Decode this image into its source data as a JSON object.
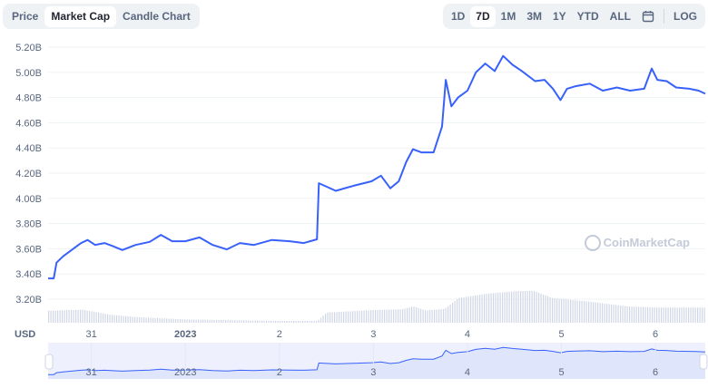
{
  "tabs": [
    {
      "label": "Price"
    },
    {
      "label": "Market Cap",
      "active": true
    },
    {
      "label": "Candle Chart"
    }
  ],
  "ranges": [
    {
      "label": "1D"
    },
    {
      "label": "7D",
      "active": true
    },
    {
      "label": "1M"
    },
    {
      "label": "3M"
    },
    {
      "label": "1Y"
    },
    {
      "label": "YTD"
    },
    {
      "label": "ALL"
    }
  ],
  "calendar_icon": "calendar-icon",
  "log_label": "LOG",
  "currency_label": "USD",
  "watermark": "CoinMarketCap",
  "colors": {
    "line": "#3861fb",
    "volume": "#cfd6e4",
    "grid": "#eff2f5",
    "navigator_fill": "#dfe6fb"
  },
  "chart_data": {
    "type": "line",
    "title": "Market Cap",
    "xlabel": "",
    "ylabel": "USD",
    "ylim": [
      3.2,
      5.2
    ],
    "y_ticks": [
      "5.20B",
      "5.00B",
      "4.80B",
      "4.60B",
      "4.40B",
      "4.20B",
      "4.00B",
      "3.80B",
      "3.60B",
      "3.40B",
      "3.20B"
    ],
    "y_tick_values": [
      5.2,
      5.0,
      4.8,
      4.6,
      4.4,
      4.2,
      4.0,
      3.8,
      3.6,
      3.4,
      3.2
    ],
    "x_unit": "days since Dec 31",
    "xlim": [
      -0.46,
      6.53
    ],
    "x_ticks": [
      "31",
      "2023",
      "2",
      "3",
      "4",
      "5",
      "6"
    ],
    "x_tick_values": [
      0,
      1,
      2,
      3,
      4,
      5,
      6
    ],
    "grid": true,
    "series": [
      {
        "name": "Market Cap (B USD)",
        "x": [
          -0.46,
          -0.4,
          -0.37,
          -0.3,
          -0.2,
          -0.11,
          -0.04,
          0.04,
          0.14,
          0.23,
          0.33,
          0.47,
          0.62,
          0.74,
          0.86,
          1.0,
          1.15,
          1.29,
          1.44,
          1.58,
          1.73,
          1.92,
          2.11,
          2.26,
          2.4,
          2.42,
          2.48,
          2.6,
          2.79,
          2.98,
          3.08,
          3.18,
          3.27,
          3.35,
          3.42,
          3.51,
          3.64,
          3.73,
          3.77,
          3.83,
          3.9,
          4.0,
          4.09,
          4.19,
          4.29,
          4.38,
          4.48,
          4.58,
          4.72,
          4.82,
          4.91,
          4.99,
          5.06,
          5.15,
          5.3,
          5.44,
          5.59,
          5.73,
          5.88,
          5.96,
          6.02,
          6.12,
          6.22,
          6.36,
          6.46,
          6.53
        ],
        "values": [
          3.365,
          3.365,
          3.49,
          3.54,
          3.595,
          3.645,
          3.67,
          3.63,
          3.645,
          3.62,
          3.59,
          3.63,
          3.655,
          3.71,
          3.66,
          3.66,
          3.69,
          3.63,
          3.595,
          3.645,
          3.63,
          3.67,
          3.66,
          3.645,
          3.675,
          4.12,
          4.1,
          4.06,
          4.1,
          4.135,
          4.18,
          4.08,
          4.135,
          4.29,
          4.39,
          4.365,
          4.365,
          4.57,
          4.94,
          4.73,
          4.8,
          4.855,
          5.0,
          5.07,
          5.01,
          5.13,
          5.06,
          5.01,
          4.93,
          4.94,
          4.87,
          4.78,
          4.87,
          4.89,
          4.91,
          4.855,
          4.88,
          4.855,
          4.87,
          5.03,
          4.94,
          4.93,
          4.88,
          4.87,
          4.855,
          4.83
        ]
      }
    ],
    "volume_relative": {
      "x": [
        -0.46,
        -0.1,
        0.2,
        0.5,
        1.0,
        1.5,
        2.0,
        2.4,
        2.5,
        3.0,
        3.3,
        3.42,
        3.55,
        3.75,
        3.9,
        4.2,
        4.5,
        4.7,
        4.9,
        5.3,
        5.7,
        6.0,
        6.53
      ],
      "values": [
        0.33,
        0.36,
        0.22,
        0.15,
        0.09,
        0.07,
        0.05,
        0.05,
        0.28,
        0.35,
        0.37,
        0.45,
        0.34,
        0.38,
        0.68,
        0.8,
        0.87,
        0.88,
        0.68,
        0.58,
        0.45,
        0.42,
        0.42
      ]
    }
  }
}
